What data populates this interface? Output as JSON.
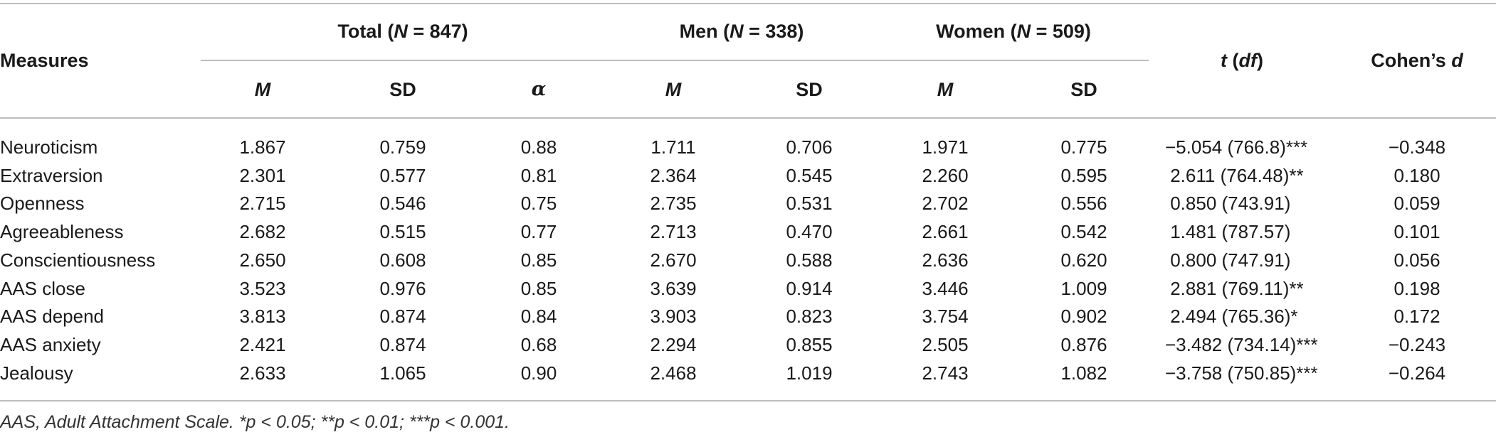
{
  "header": {
    "measures": "Measures",
    "groups": [
      {
        "label": "Total (",
        "n_label": "N",
        "n_value": " = 847)"
      },
      {
        "label": "Men (",
        "n_label": "N",
        "n_value": " = 338)"
      },
      {
        "label": "Women (",
        "n_label": "N",
        "n_value": " = 509)"
      }
    ],
    "t_df": {
      "t": "t",
      "open": " (",
      "df": "df",
      "close": ")"
    },
    "cohens_d": {
      "text": "Cohen’s ",
      "d": "d"
    },
    "subheaders": [
      "M",
      "SD",
      "α",
      "M",
      "SD",
      "M",
      "SD"
    ]
  },
  "rows": [
    {
      "measure": "Neuroticism",
      "values": [
        "1.867",
        "0.759",
        "0.88",
        "1.711",
        "0.706",
        "1.971",
        "0.775"
      ],
      "t": "−5.054 (766.8)***",
      "d": "−0.348"
    },
    {
      "measure": "Extraversion",
      "values": [
        "2.301",
        "0.577",
        "0.81",
        "2.364",
        "0.545",
        "2.260",
        "0.595"
      ],
      "t": " 2.611 (764.48)**",
      "d": "0.180"
    },
    {
      "measure": "Openness",
      "values": [
        "2.715",
        "0.546",
        "0.75",
        "2.735",
        "0.531",
        "2.702",
        "0.556"
      ],
      "t": " 0.850 (743.91)",
      "d": "0.059"
    },
    {
      "measure": "Agreeableness",
      "values": [
        "2.682",
        "0.515",
        "0.77",
        "2.713",
        "0.470",
        "2.661",
        "0.542"
      ],
      "t": " 1.481 (787.57)",
      "d": "0.101"
    },
    {
      "measure": "Conscientiousness",
      "values": [
        "2.650",
        "0.608",
        "0.85",
        "2.670",
        "0.588",
        "2.636",
        "0.620"
      ],
      "t": " 0.800 (747.91)",
      "d": "0.056"
    },
    {
      "measure": "AAS close",
      "values": [
        "3.523",
        "0.976",
        "0.85",
        "3.639",
        "0.914",
        "3.446",
        "1.009"
      ],
      "t": " 2.881 (769.11)**",
      "d": "0.198"
    },
    {
      "measure": "AAS depend",
      "values": [
        "3.813",
        "0.874",
        "0.84",
        "3.903",
        "0.823",
        "3.754",
        "0.902"
      ],
      "t": " 2.494 (765.36)*",
      "d": "0.172"
    },
    {
      "measure": "AAS anxiety",
      "values": [
        "2.421",
        "0.874",
        "0.68",
        "2.294",
        "0.855",
        "2.505",
        "0.876"
      ],
      "t": "−3.482 (734.14)***",
      "d": "−0.243"
    },
    {
      "measure": "Jealousy",
      "values": [
        "2.633",
        "1.065",
        "0.90",
        "2.468",
        "1.019",
        "2.743",
        "1.082"
      ],
      "t": "−3.758 (750.85)***",
      "d": "−0.264"
    }
  ],
  "footnote": "AAS, Adult Attachment Scale. *p < 0.05; **p < 0.01; ***p < 0.001."
}
